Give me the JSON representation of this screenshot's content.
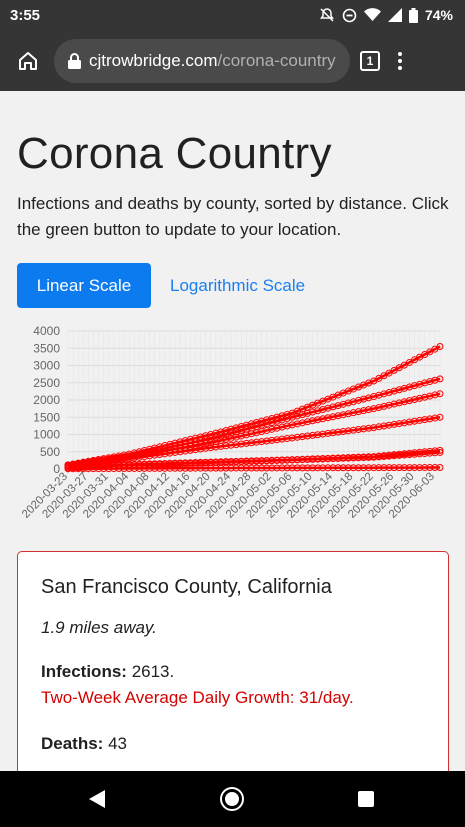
{
  "status": {
    "time": "3:55",
    "battery": "74%"
  },
  "browser": {
    "url_domain": "cjtrowbridge.com",
    "url_path": "/corona-country",
    "tab_count": "1"
  },
  "page": {
    "title": "Corona Country",
    "description": "Infections and deaths by county, sorted by distance. Click the green button to update to your location.",
    "linear_button": "Linear Scale",
    "log_button": "Logarithmic Scale"
  },
  "chart_data": {
    "type": "line",
    "ylim": [
      0,
      4000
    ],
    "y_ticks": [
      "0",
      "500",
      "1000",
      "1500",
      "2000",
      "2500",
      "3000",
      "3500",
      "4000"
    ],
    "x_tick_labels": [
      "2020-03-23",
      "2020-03-27",
      "2020-03-31",
      "2020-04-04",
      "2020-04-08",
      "2020-04-12",
      "2020-04-16",
      "2020-04-20",
      "2020-04-24",
      "2020-04-28",
      "2020-05-02",
      "2020-05-06",
      "2020-05-10",
      "2020-05-14",
      "2020-05-18",
      "2020-05-22",
      "2020-05-26",
      "2020-05-30",
      "2020-06-03"
    ],
    "x_range": [
      "2020-03-23",
      "2020-06-04"
    ],
    "grid": true,
    "color": "#ff0000",
    "series": [
      {
        "x": [
          "2020-03-23",
          "2020-04-04",
          "2020-04-20",
          "2020-05-06",
          "2020-05-22",
          "2020-06-04"
        ],
        "values": [
          120,
          430,
          1000,
          1620,
          2550,
          3550
        ]
      },
      {
        "x": [
          "2020-03-23",
          "2020-04-04",
          "2020-04-20",
          "2020-05-06",
          "2020-05-22",
          "2020-06-04"
        ],
        "values": [
          110,
          380,
          880,
          1500,
          2100,
          2613
        ]
      },
      {
        "x": [
          "2020-03-23",
          "2020-04-04",
          "2020-04-20",
          "2020-05-06",
          "2020-05-22",
          "2020-06-04"
        ],
        "values": [
          100,
          340,
          760,
          1280,
          1750,
          2180
        ]
      },
      {
        "x": [
          "2020-03-23",
          "2020-04-04",
          "2020-04-20",
          "2020-05-06",
          "2020-05-22",
          "2020-06-04"
        ],
        "values": [
          90,
          300,
          620,
          900,
          1200,
          1500
        ]
      },
      {
        "x": [
          "2020-03-23",
          "2020-04-04",
          "2020-04-20",
          "2020-05-06",
          "2020-05-22",
          "2020-06-04"
        ],
        "values": [
          60,
          130,
          200,
          270,
          360,
          540
        ]
      },
      {
        "x": [
          "2020-03-23",
          "2020-04-04",
          "2020-04-20",
          "2020-05-06",
          "2020-05-22",
          "2020-06-04"
        ],
        "values": [
          30,
          110,
          180,
          260,
          340,
          480
        ]
      },
      {
        "x": [
          "2020-03-23",
          "2020-04-04",
          "2020-04-20",
          "2020-05-06",
          "2020-05-22",
          "2020-06-04"
        ],
        "values": [
          5,
          15,
          25,
          32,
          38,
          43
        ]
      }
    ]
  },
  "card": {
    "title": "San Francisco County, California",
    "distance": "1.9 miles away.",
    "infections_label": "Infections:",
    "infections_value": "2613.",
    "growth": "Two-Week Average Daily Growth: 31/day.",
    "deaths_label": "Deaths:",
    "deaths_value": "43"
  }
}
